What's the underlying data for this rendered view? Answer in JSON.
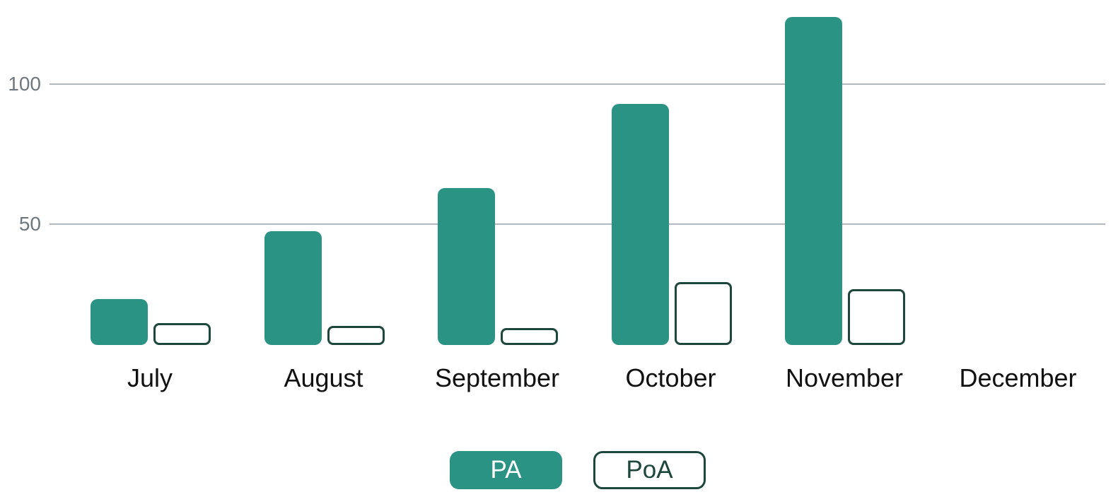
{
  "chart_data": {
    "type": "bar",
    "title": "",
    "xlabel": "",
    "ylabel": "",
    "categories": [
      "July",
      "August",
      "September",
      "October",
      "November",
      "December"
    ],
    "series": [
      {
        "name": "PA",
        "style": "filled",
        "color": "#2a9384",
        "values": [
          19,
          47,
          63,
          93,
          124,
          0
        ]
      },
      {
        "name": "PoA",
        "style": "outlined",
        "color": "#ffffff",
        "border_color": "#1d473c",
        "values": [
          9,
          8,
          7,
          26,
          23,
          0
        ]
      }
    ],
    "y_axis": {
      "ticks": [
        {
          "value": 50,
          "label": "50"
        },
        {
          "value": 100,
          "label": "100"
        }
      ],
      "range": [
        0,
        130
      ],
      "gridlines": true
    },
    "x_axis": {
      "labels_visible": true
    },
    "legend": {
      "position": "bottom-center",
      "items": [
        "PA",
        "PoA"
      ]
    }
  },
  "colors": {
    "background": "#ffffff",
    "bar_fill": "#2a9384",
    "bar_outline": "#1d473c",
    "gridline": "#b2b8bb",
    "y_tick_text": "#6e787e",
    "x_label_text": "#111111",
    "legend_filled_text": "#ffffff",
    "legend_outlined_text": "#1d473c"
  }
}
